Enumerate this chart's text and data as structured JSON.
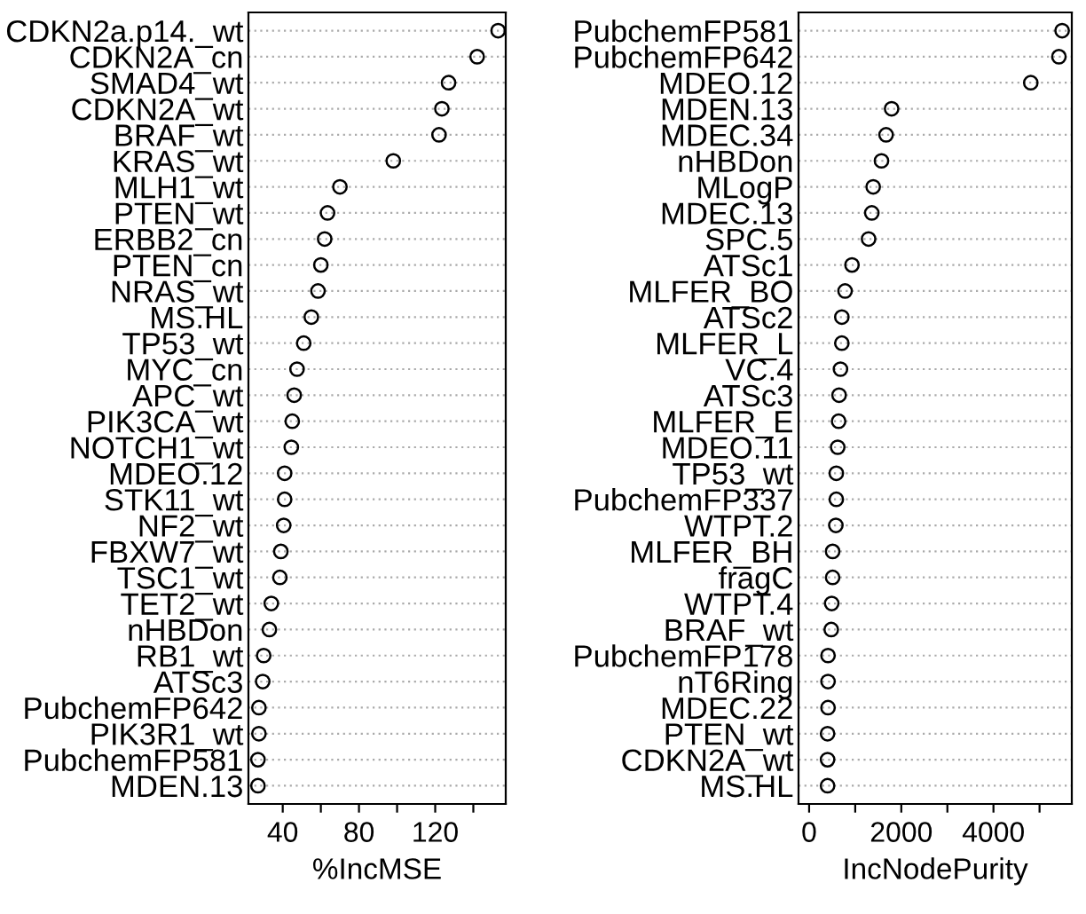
{
  "chart_data": [
    {
      "type": "scatter",
      "orientation": "horizontal",
      "xlabel": "%IncMSE",
      "marker": "circle",
      "grid": "y",
      "color": "#000000",
      "categories": [
        "CDKN2a.p14._wt",
        "CDKN2A_cn",
        "SMAD4_wt",
        "CDKN2A_wt",
        "BRAF_wt",
        "KRAS_wt",
        "MLH1_wt",
        "PTEN_wt",
        "ERBB2_cn",
        "PTEN_cn",
        "NRAS_wt",
        "MS.HL",
        "TP53_wt",
        "MYC_cn",
        "APC_wt",
        "PIK3CA_wt",
        "NOTCH1_wt",
        "MDEO.12",
        "STK11_wt",
        "NF2_wt",
        "FBXW7_wt",
        "TSC1_wt",
        "TET2_wt",
        "nHBDon",
        "RB1_wt",
        "ATSc3",
        "PubchemFP642",
        "PIK3R1_wt",
        "PubchemFP581",
        "MDEN.13"
      ],
      "values": [
        153,
        142,
        127,
        123.5,
        122,
        98,
        70,
        63.5,
        62,
        60,
        58.5,
        55,
        51,
        47.5,
        46,
        45,
        44.5,
        41,
        41,
        40.5,
        39,
        38.5,
        34,
        33,
        30,
        29.5,
        27.5,
        27.5,
        27,
        27
      ],
      "xlim": [
        22,
        157
      ],
      "xticks": [
        40,
        {
          "value": 60,
          "label": null
        },
        80,
        {
          "value": 100,
          "label": null
        },
        120,
        {
          "value": 140,
          "label": null
        }
      ]
    },
    {
      "type": "scatter",
      "orientation": "horizontal",
      "xlabel": "IncNodePurity",
      "marker": "circle",
      "grid": "y",
      "color": "#000000",
      "categories": [
        "PubchemFP581",
        "PubchemFP642",
        "MDEO.12",
        "MDEN.13",
        "MDEC.34",
        "nHBDon",
        "MLogP",
        "MDEC.13",
        "SPC.5",
        "ATSc1",
        "MLFER_BO",
        "ATSc2",
        "MLFER_L",
        "VC.4",
        "ATSc3",
        "MLFER_E",
        "MDEO.11",
        "TP53_wt",
        "PubchemFP337",
        "WTPT.2",
        "MLFER_BH",
        "fragC",
        "WTPT.4",
        "BRAF_wt",
        "PubchemFP178",
        "nT6Ring",
        "MDEC.22",
        "PTEN_wt",
        "CDKN2A_wt",
        "MS.HL"
      ],
      "values": [
        5490,
        5420,
        4810,
        1790,
        1670,
        1570,
        1390,
        1360,
        1290,
        930,
        780,
        710,
        710,
        680,
        650,
        640,
        620,
        590,
        590,
        580,
        510,
        510,
        490,
        480,
        410,
        410,
        410,
        400,
        400,
        400
      ],
      "xlim": [
        -230,
        5700
      ],
      "xticks": [
        0,
        {
          "value": 1000,
          "label": null
        },
        2000,
        {
          "value": 3000,
          "label": null
        },
        4000,
        {
          "value": 5000,
          "label": null
        }
      ]
    }
  ]
}
